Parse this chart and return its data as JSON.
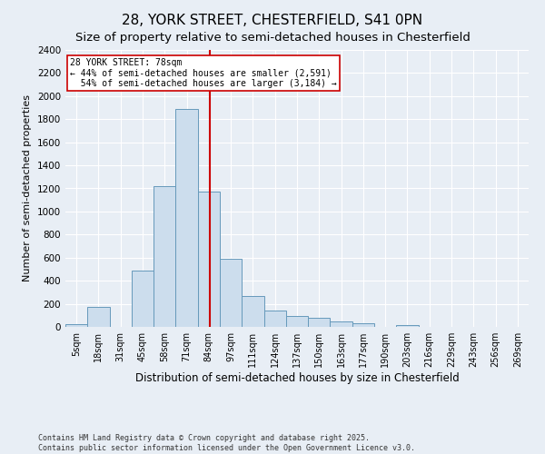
{
  "title1": "28, YORK STREET, CHESTERFIELD, S41 0PN",
  "title2": "Size of property relative to semi-detached houses in Chesterfield",
  "xlabel": "Distribution of semi-detached houses by size in Chesterfield",
  "ylabel": "Number of semi-detached properties",
  "bar_labels": [
    "5sqm",
    "18sqm",
    "31sqm",
    "45sqm",
    "58sqm",
    "71sqm",
    "84sqm",
    "97sqm",
    "111sqm",
    "124sqm",
    "137sqm",
    "150sqm",
    "163sqm",
    "177sqm",
    "190sqm",
    "203sqm",
    "216sqm",
    "229sqm",
    "243sqm",
    "256sqm",
    "269sqm"
  ],
  "values": [
    25,
    170,
    0,
    490,
    1220,
    1890,
    1170,
    590,
    265,
    145,
    95,
    75,
    50,
    28,
    0,
    15,
    0,
    0,
    0,
    0,
    0
  ],
  "bar_color": "#ccdded",
  "bar_edge_color": "#6699bb",
  "ylim": [
    0,
    2400
  ],
  "yticks": [
    0,
    200,
    400,
    600,
    800,
    1000,
    1200,
    1400,
    1600,
    1800,
    2000,
    2200,
    2400
  ],
  "property_label": "28 YORK STREET: 78sqm",
  "pct_smaller": 44,
  "pct_larger": 54,
  "n_smaller": 2591,
  "n_larger": 3184,
  "vline_color": "#cc0000",
  "annotation_box_color": "#cc0000",
  "background_color": "#e8eef5",
  "footer": "Contains HM Land Registry data © Crown copyright and database right 2025.\nContains public sector information licensed under the Open Government Licence v3.0.",
  "grid_color": "#ffffff",
  "title1_fontsize": 11,
  "title2_fontsize": 9.5,
  "tick_fontsize": 7,
  "ylabel_fontsize": 8,
  "xlabel_fontsize": 8.5
}
